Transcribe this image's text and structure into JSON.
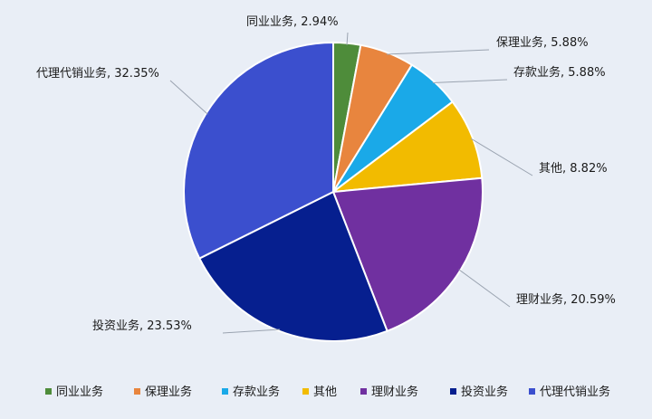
{
  "chart_data": {
    "type": "pie",
    "title": "",
    "legend_position": "bottom",
    "slices": [
      {
        "label": "同业业务",
        "value": 2.94,
        "display": "同业业务, 2.94%",
        "color": "#4e8c3a"
      },
      {
        "label": "保理业务",
        "value": 5.88,
        "display": "保理业务, 5.88%",
        "color": "#e8853e"
      },
      {
        "label": "存款业务",
        "value": 5.88,
        "display": "存款业务, 5.88%",
        "color": "#1aa9e8"
      },
      {
        "label": "其他",
        "value": 8.82,
        "display": "其他, 8.82%",
        "color": "#f2bb00"
      },
      {
        "label": "理财业务",
        "value": 20.59,
        "display": "理财业务, 20.59%",
        "color": "#7030a0"
      },
      {
        "label": "投资业务",
        "value": 23.53,
        "display": "投资业务, 23.53%",
        "color": "#061f8f"
      },
      {
        "label": "代理代销业务",
        "value": 32.35,
        "display": "代理代销业务, 32.35%",
        "color": "#3b4fce"
      }
    ]
  }
}
